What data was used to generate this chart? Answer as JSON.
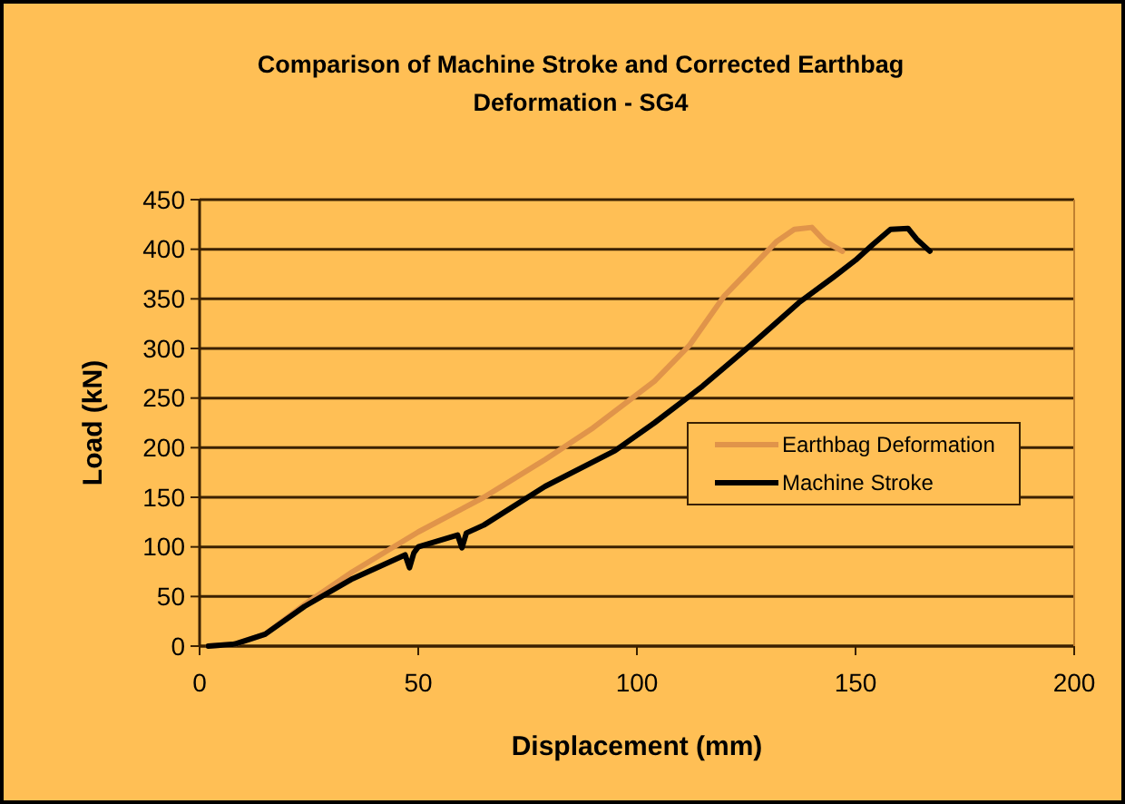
{
  "chart_data": {
    "type": "line",
    "title": "Comparison of Machine Stroke and Corrected Earthbag Deformation - SG4",
    "xlabel": "Displacement (mm)",
    "ylabel": "Load (kN)",
    "xlim": [
      0,
      200
    ],
    "xticks": [
      0,
      50,
      100,
      150,
      200
    ],
    "ylim": [
      0,
      450
    ],
    "yticks": [
      0,
      50,
      100,
      150,
      200,
      250,
      300,
      350,
      400,
      450
    ],
    "grid": "y",
    "legend": "bottom right",
    "series": [
      {
        "name": "Earthbag Deformation",
        "color": "#e0944a",
        "x": [
          2,
          8,
          15,
          24,
          35,
          50,
          65,
          79,
          90,
          104,
          112,
          120,
          127,
          132,
          136,
          140,
          143,
          147
        ],
        "values": [
          0,
          2,
          12,
          42,
          75,
          115,
          150,
          188,
          220,
          267,
          303,
          353,
          385,
          408,
          420,
          422,
          408,
          398
        ]
      },
      {
        "name": "Machine Stroke",
        "color": "#000000",
        "x": [
          2,
          8,
          15,
          24,
          35,
          47,
          48,
          49,
          50,
          59,
          60,
          61,
          65,
          79,
          95,
          104,
          115,
          127,
          137,
          145,
          150,
          154,
          158,
          162,
          164,
          167
        ],
        "values": [
          0,
          2,
          12,
          40,
          68,
          92,
          79,
          94,
          100,
          112,
          99,
          114,
          122,
          161,
          197,
          225,
          262,
          307,
          346,
          372,
          389,
          405,
          420,
          421,
          410,
          398
        ]
      }
    ]
  }
}
